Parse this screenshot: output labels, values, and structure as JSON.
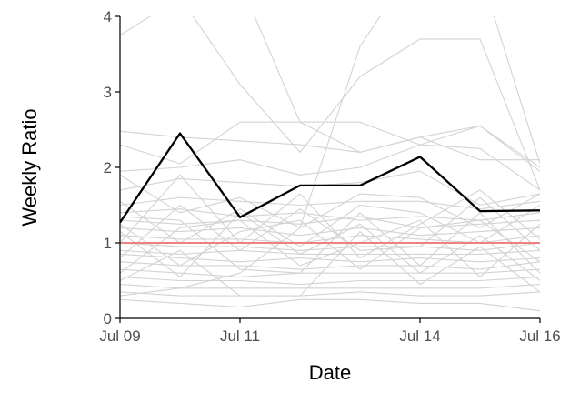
{
  "chart_data": {
    "type": "line",
    "title": "",
    "xlabel": "Date",
    "ylabel": "Weekly Ratio",
    "x": [
      "2020-07-09",
      "2020-07-10",
      "2020-07-11",
      "2020-07-12",
      "2020-07-13",
      "2020-07-14",
      "2020-07-15",
      "2020-07-16"
    ],
    "x_tick_labels": [
      "Jul 09",
      "Jul 11",
      "Jul 14",
      "Jul 16"
    ],
    "x_tick_dates": [
      "2020-07-09",
      "2020-07-11",
      "2020-07-14",
      "2020-07-16"
    ],
    "xlim": [
      "2020-07-09",
      "2020-07-16"
    ],
    "y_ticks": [
      0,
      1,
      2,
      3,
      4
    ],
    "ylim": [
      0,
      4
    ],
    "grid": false,
    "legend": "none",
    "reference_line": {
      "y": 1,
      "color": "#f08080"
    },
    "colors": {
      "highlight": "#000000",
      "background_series": "#d3d3d3",
      "reference": "#f08080"
    },
    "series": [
      {
        "role": "highlight",
        "values": [
          1.27,
          2.45,
          1.34,
          1.76,
          1.76,
          2.14,
          1.42,
          1.43
        ]
      },
      {
        "role": "background",
        "values": [
          3.75,
          4.25,
          3.1,
          2.2,
          3.2,
          3.7,
          3.7,
          1.7
        ]
      },
      {
        "role": "background",
        "values": [
          4.3,
          4.6,
          4.45,
          2.6,
          2.6,
          2.3,
          2.55,
          1.95
        ]
      },
      {
        "role": "background",
        "values": [
          0.3,
          0.4,
          0.6,
          1.2,
          3.6,
          4.8,
          4.6,
          2.05
        ]
      },
      {
        "role": "background",
        "values": [
          2.3,
          2.05,
          2.6,
          2.6,
          2.2,
          2.4,
          2.1,
          2.1
        ]
      },
      {
        "role": "background",
        "values": [
          2.48,
          2.4,
          2.35,
          2.3,
          2.2,
          2.4,
          2.55,
          2.0
        ]
      },
      {
        "role": "background",
        "values": [
          1.95,
          2.0,
          2.1,
          1.9,
          2.0,
          2.3,
          2.25,
          1.7
        ]
      },
      {
        "role": "background",
        "values": [
          1.7,
          1.85,
          1.8,
          1.75,
          1.8,
          1.95,
          1.5,
          1.65
        ]
      },
      {
        "role": "background",
        "values": [
          1.5,
          1.6,
          1.55,
          1.5,
          1.55,
          1.55,
          1.45,
          1.55
        ]
      },
      {
        "role": "background",
        "values": [
          1.4,
          1.45,
          1.35,
          1.4,
          1.3,
          1.35,
          1.3,
          1.4
        ]
      },
      {
        "role": "background",
        "values": [
          1.3,
          1.25,
          1.3,
          1.25,
          1.35,
          1.2,
          1.25,
          1.3
        ]
      },
      {
        "role": "background",
        "values": [
          1.2,
          1.15,
          1.2,
          1.1,
          1.2,
          1.1,
          1.15,
          1.2
        ]
      },
      {
        "role": "background",
        "values": [
          1.1,
          1.05,
          1.05,
          1.0,
          1.1,
          1.05,
          1.0,
          1.1
        ]
      },
      {
        "role": "background",
        "values": [
          1.0,
          0.95,
          0.95,
          0.9,
          0.95,
          0.95,
          0.9,
          1.0
        ]
      },
      {
        "role": "background",
        "values": [
          0.9,
          0.85,
          0.9,
          0.85,
          0.85,
          0.85,
          0.85,
          0.9
        ]
      },
      {
        "role": "background",
        "values": [
          0.85,
          0.8,
          0.75,
          0.8,
          0.75,
          0.8,
          0.75,
          0.8
        ]
      },
      {
        "role": "background",
        "values": [
          0.75,
          0.7,
          0.7,
          0.65,
          0.7,
          0.7,
          0.65,
          0.75
        ]
      },
      {
        "role": "background",
        "values": [
          0.65,
          0.6,
          0.55,
          0.6,
          0.6,
          0.6,
          0.6,
          0.65
        ]
      },
      {
        "role": "background",
        "values": [
          0.55,
          0.5,
          0.5,
          0.45,
          0.5,
          0.5,
          0.5,
          0.55
        ]
      },
      {
        "role": "background",
        "values": [
          0.45,
          0.4,
          0.4,
          0.4,
          0.4,
          0.4,
          0.4,
          0.45
        ]
      },
      {
        "role": "background",
        "values": [
          0.35,
          0.3,
          0.3,
          0.3,
          0.35,
          0.3,
          0.3,
          0.35
        ]
      },
      {
        "role": "background",
        "values": [
          0.25,
          0.2,
          0.15,
          0.25,
          0.25,
          0.2,
          0.2,
          0.1
        ]
      },
      {
        "role": "background",
        "values": [
          1.35,
          1.3,
          0.65,
          0.6,
          1.4,
          0.7,
          1.4,
          0.6
        ]
      },
      {
        "role": "background",
        "values": [
          0.6,
          1.2,
          1.3,
          0.7,
          1.0,
          1.3,
          0.55,
          1.25
        ]
      },
      {
        "role": "background",
        "values": [
          1.25,
          0.7,
          1.15,
          1.3,
          0.65,
          1.2,
          1.3,
          0.75
        ]
      },
      {
        "role": "background",
        "values": [
          0.8,
          1.5,
          0.9,
          1.45,
          0.9,
          0.95,
          1.6,
          0.9
        ]
      },
      {
        "role": "background",
        "values": [
          1.55,
          1.0,
          1.45,
          0.95,
          1.5,
          1.4,
          1.0,
          1.5
        ]
      },
      {
        "role": "background",
        "values": [
          0.5,
          0.9,
          0.3,
          0.3,
          1.15,
          0.45,
          0.95,
          0.35
        ]
      },
      {
        "role": "background",
        "values": [
          1.9,
          1.4,
          1.6,
          1.2,
          1.65,
          1.6,
          1.2,
          1.65
        ]
      },
      {
        "role": "background",
        "values": [
          1.0,
          1.9,
          1.0,
          1.65,
          0.8,
          1.25,
          1.7,
          1.05
        ]
      },
      {
        "role": "background",
        "values": [
          1.15,
          0.55,
          1.4,
          0.85,
          1.25,
          0.6,
          1.1,
          0.5
        ]
      }
    ]
  }
}
